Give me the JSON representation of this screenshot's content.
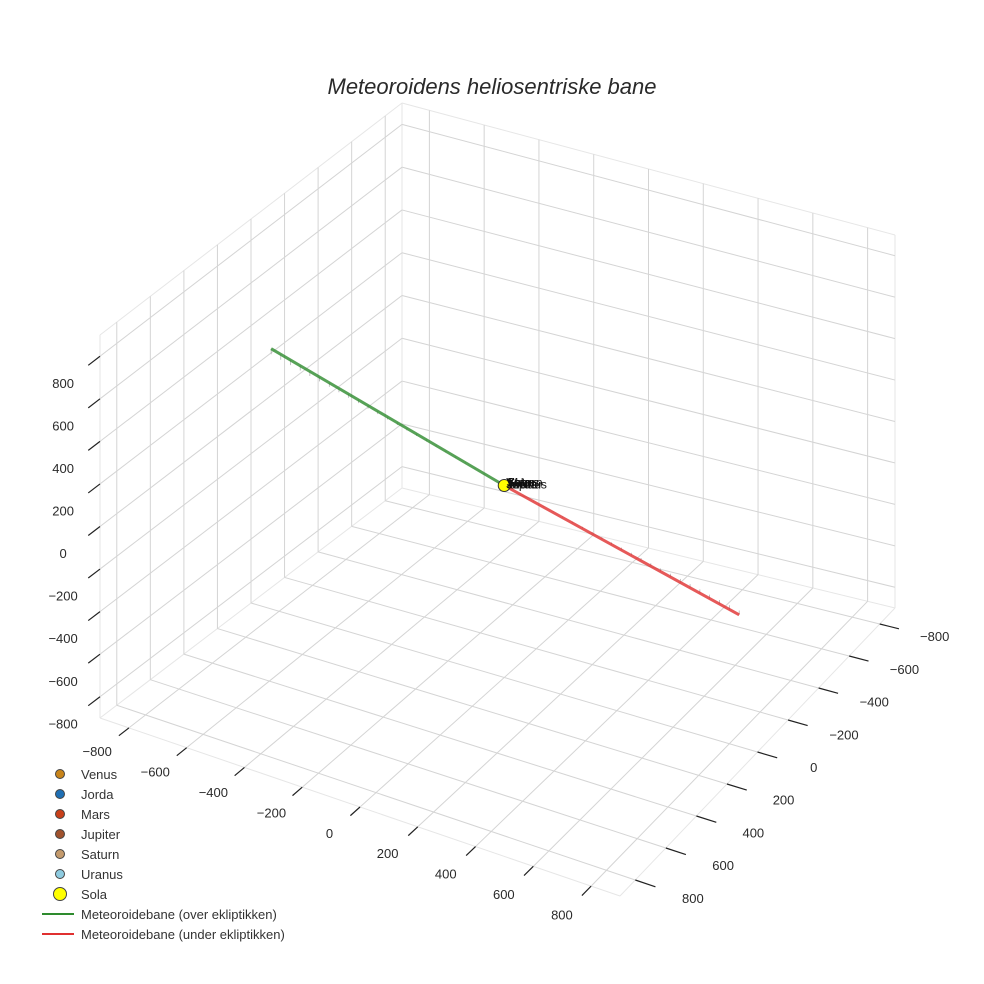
{
  "chart_data": {
    "type": "line3d",
    "title": "Meteoroidens heliosentriske bane",
    "axes": {
      "x": {
        "ticks": [
          -800,
          -600,
          -400,
          -200,
          0,
          200,
          400,
          600,
          800
        ],
        "range": [
          -900,
          900
        ]
      },
      "y": {
        "ticks": [
          -800,
          -600,
          -400,
          -200,
          0,
          200,
          400,
          600,
          800
        ],
        "range": [
          -900,
          900
        ]
      },
      "z": {
        "ticks": [
          -800,
          -600,
          -400,
          -200,
          0,
          200,
          400,
          600,
          800
        ],
        "range": [
          -900,
          900
        ]
      }
    },
    "grid": true,
    "legend_position": "bottom-left",
    "series": [
      {
        "name": "Venus",
        "kind": "marker",
        "color": "#c8841a",
        "points": [
          [
            0,
            0,
            0
          ]
        ]
      },
      {
        "name": "Jorda",
        "kind": "marker",
        "color": "#1f6fb4",
        "points": [
          [
            0,
            0,
            0
          ]
        ]
      },
      {
        "name": "Mars",
        "kind": "marker",
        "color": "#c8401a",
        "points": [
          [
            0,
            0,
            0
          ]
        ]
      },
      {
        "name": "Jupiter",
        "kind": "marker",
        "color": "#a0522d",
        "points": [
          [
            0,
            0,
            0
          ]
        ]
      },
      {
        "name": "Saturn",
        "kind": "marker",
        "color": "#c49a6c",
        "points": [
          [
            0,
            0,
            0
          ]
        ]
      },
      {
        "name": "Uranus",
        "kind": "marker",
        "color": "#8ecbe0",
        "points": [
          [
            0,
            0,
            0
          ]
        ]
      },
      {
        "name": "Sola",
        "kind": "marker",
        "color": "#ffff00",
        "points": [
          [
            0,
            0,
            0
          ]
        ]
      },
      {
        "name": "Meteoroidebane (over ekliptikken)",
        "kind": "line",
        "color": "#2e8b2e",
        "points": [
          [
            -900,
            -120,
            220
          ],
          [
            0,
            0,
            0
          ]
        ]
      },
      {
        "name": "Meteoroidebane (under ekliptikken)",
        "kind": "line",
        "color": "#e03030",
        "points": [
          [
            0,
            0,
            0
          ],
          [
            900,
            120,
            -170
          ]
        ]
      }
    ]
  },
  "legend": {
    "items": [
      {
        "label": "Venus",
        "type": "dot",
        "color": "#c8841a"
      },
      {
        "label": "Jorda",
        "type": "dot",
        "color": "#1f6fb4"
      },
      {
        "label": "Mars",
        "type": "dot",
        "color": "#c8401a"
      },
      {
        "label": "Jupiter",
        "type": "dot",
        "color": "#a0522d"
      },
      {
        "label": "Saturn",
        "type": "dot",
        "color": "#c49a6c"
      },
      {
        "label": "Uranus",
        "type": "dot",
        "color": "#8ecbe0"
      },
      {
        "label": "Sola",
        "type": "bigdot",
        "color": "#ffff00"
      },
      {
        "label": "Meteoroidebane (over ekliptikken)",
        "type": "line",
        "color": "#2e8b2e"
      },
      {
        "label": "Meteoroidebane (under ekliptikken)",
        "type": "line",
        "color": "#e03030"
      }
    ]
  },
  "sun_labels": [
    "Venus",
    "Jorda",
    "Mars",
    "Jupiter",
    "Saturn",
    "Uranus",
    "Sola"
  ],
  "colors": {
    "grid": "#d4d4d4",
    "pane_edge": "#e6e6e6",
    "tick": "#222222",
    "text": "#2a2a2a"
  }
}
